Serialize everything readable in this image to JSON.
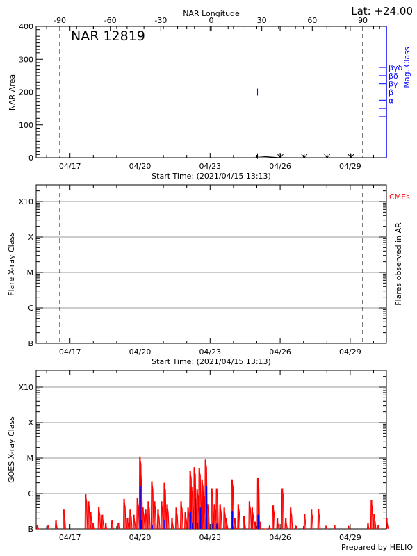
{
  "figure": {
    "prepared_by": "Prepared by HELIO"
  },
  "chart_data": [
    {
      "type": "scatter",
      "title": "NAR 12819",
      "latitude_label": "Lat: +24.00",
      "x_top_label": "NAR Longitude",
      "x_top_ticks": [
        -90,
        -60,
        -30,
        0,
        30,
        60,
        90
      ],
      "x_top_tick_labels": [
        "-90",
        "-60",
        "-30",
        "0",
        "30",
        "60",
        "90"
      ],
      "xlabel": "Start Time: (2021/04/15 13:13)",
      "xlim": [
        "04/15 13:13",
        "04/30 13:13"
      ],
      "x_tick_labels": [
        "04/17",
        "04/20",
        "04/23",
        "04/26",
        "04/29"
      ],
      "ylabel": "NAR Area",
      "ylim": [
        0,
        400
      ],
      "y_ticks": [
        0,
        100,
        200,
        300,
        400
      ],
      "y_tick_labels": [
        "0",
        "100",
        "200",
        "300",
        "400"
      ],
      "y2label": "Mag. Class",
      "y2_tick_labels": [
        "α",
        "β",
        "βγ",
        "βδ",
        "βγδ"
      ],
      "vlines_longitude": [
        -90,
        90
      ],
      "colors": {
        "area": "#000000",
        "mag_class": "#0000ff"
      },
      "area_points": [
        {
          "time": "04/25 00:45",
          "longitude": 27,
          "area": 5
        },
        {
          "time": "04/26 00:15",
          "longitude": 40,
          "area": 0
        },
        {
          "time": "04/27 00:45",
          "longitude": 54,
          "area": 0
        },
        {
          "time": "04/28 00:15",
          "longitude": 68,
          "area": 0
        },
        {
          "time": "04/29 00:45",
          "longitude": 82,
          "area": 0
        }
      ],
      "mag_class_points": [
        {
          "time": "04/25 00:45",
          "mag_class": "β"
        }
      ]
    },
    {
      "type": "line",
      "xlabel": "Start Time: (2021/04/15 13:13)",
      "x_tick_labels": [
        "04/17",
        "04/20",
        "04/23",
        "04/26",
        "04/29"
      ],
      "ylabel": "Flare X-ray Class",
      "y_ticks": [
        1e-07,
        1e-06,
        1e-05,
        0.0001,
        0.001
      ],
      "y_tick_labels": [
        "B",
        "C",
        "M",
        "X",
        "X10"
      ],
      "y_scale": "log",
      "grid": true,
      "y2label": "Flares observed in AR",
      "annotation": "CMEs",
      "annotation_color": "#ff0000",
      "vlines_longitude": [
        -90,
        90
      ],
      "series": []
    },
    {
      "type": "line",
      "x_tick_labels": [
        "04/17",
        "04/20",
        "04/23",
        "04/26",
        "04/29"
      ],
      "ylabel": "GOES X-ray Class",
      "y_ticks": [
        1e-07,
        1e-06,
        1e-05,
        0.0001,
        0.001
      ],
      "y_tick_labels": [
        "B",
        "C",
        "M",
        "X",
        "X10"
      ],
      "y_scale": "log",
      "grid": true,
      "series": [
        {
          "color": "#ff0000",
          "points": [
            [
              "04/15 15:00",
              1.3e-07
            ],
            [
              "04/16 02:00",
              1.3e-07
            ],
            [
              "04/16 10:00",
              1.8e-07
            ],
            [
              "04/16 18:00",
              3.5e-07
            ],
            [
              "04/17 16:30",
              9.5e-07
            ],
            [
              "04/17 19:30",
              6e-07
            ],
            [
              "04/17 21:40",
              3e-07
            ],
            [
              "04/18 00:00",
              1.5e-07
            ],
            [
              "04/18 06:00",
              4.2e-07
            ],
            [
              "04/18 09:40",
              2.5e-07
            ],
            [
              "04/18 13:10",
              1.5e-07
            ],
            [
              "04/18 19:40",
              1.8e-07
            ],
            [
              "04/19 02:10",
              1.5e-07
            ],
            [
              "04/19 08:00",
              7e-07
            ],
            [
              "04/19 11:30",
              2e-07
            ],
            [
              "04/19 14:20",
              3.5e-07
            ],
            [
              "04/19 18:00",
              2.5e-07
            ],
            [
              "04/19 21:40",
              7.3e-07
            ],
            [
              "04/20 00:15",
              1.1e-05
            ],
            [
              "04/20 01:10",
              3.4e-06
            ],
            [
              "04/20 03:20",
              4e-07
            ],
            [
              "04/20 06:10",
              3.5e-07
            ],
            [
              "04/20 08:55",
              6e-07
            ],
            [
              "04/20 12:30",
              2.2e-06
            ],
            [
              "04/20 15:20",
              6e-07
            ],
            [
              "04/20 18:55",
              3.5e-07
            ],
            [
              "04/20 22:30",
              6e-07
            ],
            [
              "04/21 01:25",
              2e-06
            ],
            [
              "04/21 04:15",
              5e-07
            ],
            [
              "04/21 09:15",
              2e-07
            ],
            [
              "04/21 13:35",
              4e-07
            ],
            [
              "04/21 18:35",
              6e-07
            ],
            [
              "04/21 22:55",
              3e-07
            ],
            [
              "04/22 01:45",
              4e-07
            ],
            [
              "04/22 03:55",
              4.4e-06
            ],
            [
              "04/22 05:20",
              1.5e-06
            ],
            [
              "04/22 08:10",
              5.5e-06
            ],
            [
              "04/22 11:05",
              1.3e-06
            ],
            [
              "04/22 13:15",
              5.3e-06
            ],
            [
              "04/22 16:05",
              2.5e-06
            ],
            [
              "04/22 17:30",
              1.2e-06
            ],
            [
              "04/22 19:40",
              9e-06
            ],
            [
              "04/22 21:50",
              5e-07
            ],
            [
              "04/23 02:05",
              1.4e-06
            ],
            [
              "04/23 04:55",
              5e-07
            ],
            [
              "04/23 07:05",
              1.4e-06
            ],
            [
              "04/23 10:40",
              5e-07
            ],
            [
              "04/23 14:55",
              4e-07
            ],
            [
              "04/23 17:05",
              2e-07
            ],
            [
              "04/23 22:55",
              2.5e-06
            ],
            [
              "04/24 01:45",
              2e-07
            ],
            [
              "04/24 05:20",
              5e-07
            ],
            [
              "04/24 11:05",
              2.3e-07
            ],
            [
              "04/24 16:50",
              6e-07
            ],
            [
              "04/24 19:40",
              4e-07
            ],
            [
              "04/24 22:35",
              1.6e-07
            ],
            [
              "04/25 01:25",
              2.7e-06
            ],
            [
              "04/25 03:35",
              1.6e-07
            ],
            [
              "04/25 08:35",
              1e-07
            ],
            [
              "04/25 13:35",
              1.2e-07
            ],
            [
              "04/25 17:10",
              4.6e-07
            ],
            [
              "04/25 21:30",
              2e-07
            ],
            [
              "04/26 02:35",
              1.4e-06
            ],
            [
              "04/26 06:10",
              2e-07
            ],
            [
              "04/26 11:10",
              4e-07
            ],
            [
              "04/26 16:55",
              1.2e-07
            ],
            [
              "04/27 01:30",
              2.6e-07
            ],
            [
              "04/27 08:35",
              3.5e-07
            ],
            [
              "04/27 15:45",
              3.7e-07
            ],
            [
              "04/27 23:45",
              1.2e-07
            ],
            [
              "04/28 08:20",
              1.3e-07
            ],
            [
              "04/28 22:40",
              1.2e-07
            ],
            [
              "04/29 18:40",
              1.5e-07
            ],
            [
              "04/29 22:10",
              6.4e-07
            ],
            [
              "04/30 01:00",
              2.6e-07
            ],
            [
              "04/30 05:20",
              1.3e-07
            ],
            [
              "04/30 13:55",
              2e-07
            ]
          ]
        },
        {
          "color": "#0000ff",
          "points": [
            [
              "04/20 00:15",
              1.6e-06
            ],
            [
              "04/20 01:10",
              1.8e-07
            ],
            [
              "04/20 12:30",
              1.3e-07
            ],
            [
              "04/21 01:25",
              1.8e-07
            ],
            [
              "04/22 03:55",
              3e-07
            ],
            [
              "04/22 06:00",
              1.5e-07
            ],
            [
              "04/22 08:55",
              7e-07
            ],
            [
              "04/22 11:05",
              1.5e-07
            ],
            [
              "04/22 14:10",
              4e-07
            ],
            [
              "04/22 20:25",
              1.6e-06
            ],
            [
              "04/23 02:50",
              1.4e-07
            ],
            [
              "04/23 07:05",
              1.4e-07
            ],
            [
              "04/23 22:55",
              3.2e-07
            ],
            [
              "04/25 01:25",
              2.5e-07
            ]
          ]
        }
      ]
    }
  ]
}
